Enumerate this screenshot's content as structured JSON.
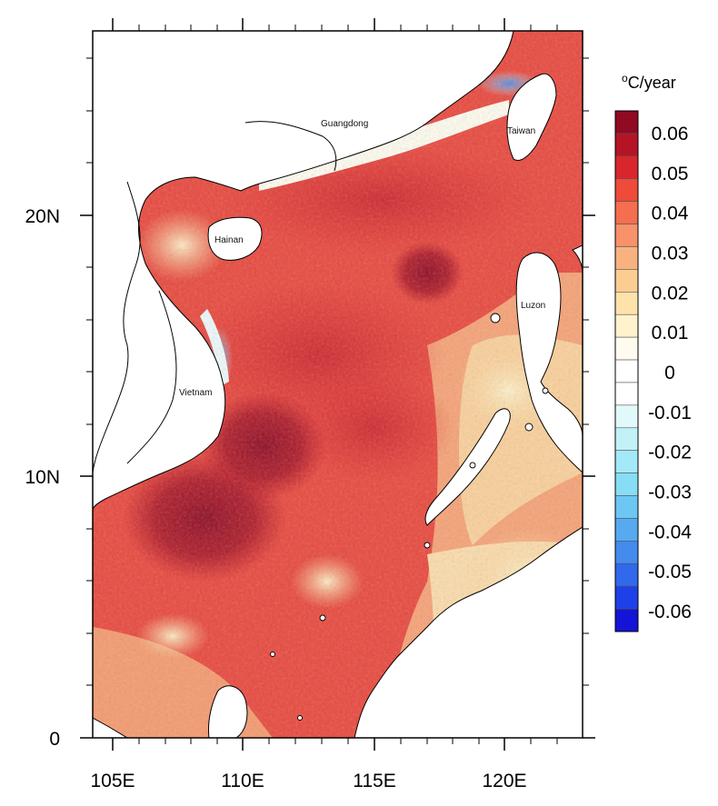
{
  "map": {
    "x_tick_labels": [
      "105E",
      "110E",
      "115E",
      "120E"
    ],
    "y_tick_labels": [
      "0",
      "10N",
      "20N"
    ],
    "place_labels": [
      {
        "name": "Guangdong"
      },
      {
        "name": "Taiwan"
      },
      {
        "name": "Hainan"
      },
      {
        "name": "Luzon"
      },
      {
        "name": "Vietnam"
      }
    ],
    "lon_range": [
      104.2,
      123.0
    ],
    "lat_range": [
      0,
      27.3
    ],
    "field_description": "SST trend, strong warming (dark red) across central basin and SE of Vietnam, weaker warming near Philippines/Borneo, slight cooling near Taiwan Strait and Vietnam coast"
  },
  "colorbar": {
    "unit_superscript": "o",
    "unit_text": "C/year",
    "labels": [
      "0.06",
      "0.05",
      "0.04",
      "0.03",
      "0.02",
      "0.01",
      "0",
      "-0.01",
      "-0.02",
      "-0.03",
      "-0.04",
      "-0.05",
      "-0.06"
    ],
    "colors": [
      "#8f0a22",
      "#b51426",
      "#d9262d",
      "#ee4b3a",
      "#f46e4f",
      "#f7926a",
      "#f9b27f",
      "#fbcd93",
      "#fde3ab",
      "#fef3cc",
      "#fffcef",
      "#ffffff",
      "#ffffff",
      "#e2f9fb",
      "#c2f2f8",
      "#a3e9f7",
      "#86ddf5",
      "#6cc7f3",
      "#56aaf0",
      "#448bee",
      "#3168ec",
      "#1e40e9",
      "#1414d6"
    ]
  }
}
